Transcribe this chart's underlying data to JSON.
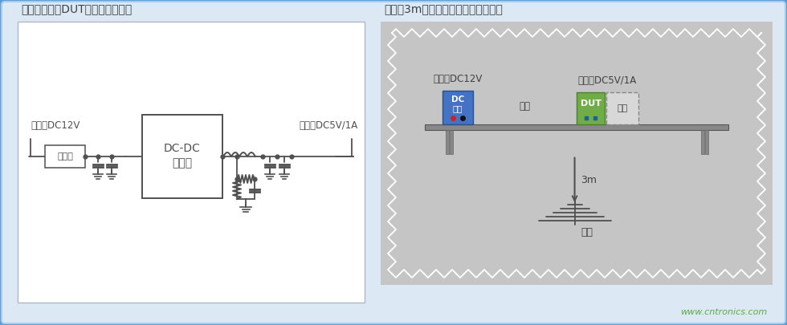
{
  "bg_color": "#5b9bd5",
  "inner_bg": "#dce9f5",
  "panel_left_bg": "#ffffff",
  "panel_right_bg": "#cacaca",
  "title_left": "《评估电路（DUT：被测设备）》",
  "title_right": "《通过3m法电波暗室测量辐射噪音》",
  "label_input": "输入：DC12V",
  "label_output": "输出：DC5V/1A",
  "label_filter": "过滤器",
  "label_dcdc1": "DC-DC",
  "label_dcdc2": "转换器",
  "label_input_r": "输入：DC12V",
  "label_output_r": "输出：DC5V/1A",
  "label_dc1": "DC",
  "label_dc2": "电源",
  "label_cable": "电缆",
  "label_dut": "DUT",
  "label_load": "负载",
  "label_3m": "3m",
  "label_antenna": "天线",
  "watermark": "www.cntronics.com",
  "lc": "#505050",
  "text_color": "#404040",
  "wm_color": "#5aaa46"
}
